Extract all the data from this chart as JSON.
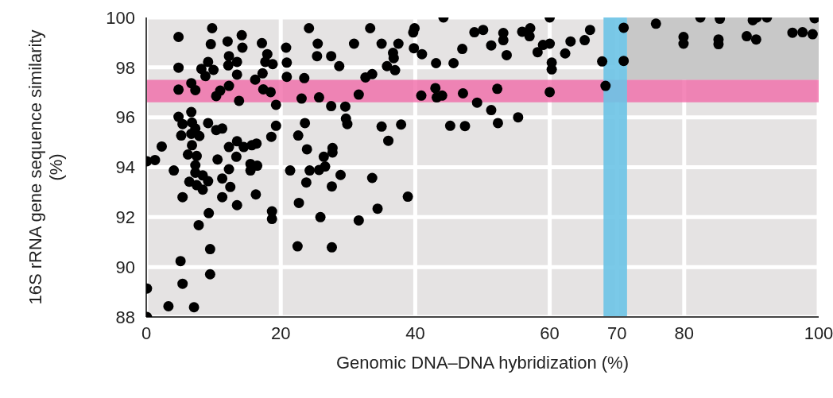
{
  "chart_data": {
    "type": "scatter",
    "xlabel": "Genomic DNA–DNA hybridization (%)",
    "ylabel": "16S rRNA gene sequence similarity (%)",
    "xlim": [
      0,
      100
    ],
    "ylim": [
      88,
      100
    ],
    "xticks": [
      0,
      20,
      40,
      60,
      70,
      80,
      100
    ],
    "yticks": [
      88,
      90,
      92,
      94,
      96,
      98,
      100
    ],
    "grid": true,
    "marker": "circle",
    "legend": false,
    "bands": [
      {
        "axis": "y",
        "from": 97.5,
        "to": 100,
        "color": "#c8c8c8"
      },
      {
        "axis": "y",
        "from": 96.6,
        "to": 97.5,
        "color": "#f06aa8"
      },
      {
        "axis": "x",
        "from": 68,
        "to": 71.5,
        "color": "#6cc3e6"
      }
    ],
    "series": [
      {
        "color": "#000000",
        "x": [
          9.8,
          4.8,
          14.2,
          9.6,
          12.1,
          14.3,
          17.2,
          20.8,
          18.0,
          4.8,
          8.2,
          9.2,
          10.0,
          8.8,
          12.3,
          13.5,
          12.2,
          13.5,
          17.7,
          18.8,
          20.9,
          20.9,
          17.3,
          16.2,
          4.8,
          6.7,
          7.3,
          10.4,
          11.0,
          12.3,
          13.8,
          17.4,
          18.5,
          19.3,
          4.8,
          5.4,
          6.7,
          6.8,
          7.3,
          9.2,
          10.4,
          11.3,
          19.3,
          5.2,
          6.7,
          7.9,
          2.3,
          6.8,
          12.3,
          13.5,
          14.5,
          15.7,
          16.4,
          18.6,
          6.2,
          7.5,
          10.6,
          13.4,
          0.1,
          1.3,
          7.3,
          4.1,
          7.3,
          8.4,
          9.2,
          6.4,
          7.5,
          8.4,
          11.3,
          12.3,
          12.5,
          11.3,
          5.4,
          13.5,
          15.5,
          16.5,
          15.5,
          16.3,
          21.4,
          18.7,
          18.7,
          9.3,
          7.8,
          9.5,
          5.1,
          9.5,
          5.4,
          0.1,
          3.3,
          7.1,
          0.1,
          24.2,
          33.3,
          39.9,
          39.7,
          44.2,
          25.5,
          30.9,
          35.0,
          37.5,
          25.4,
          27.5,
          28.7,
          36.7,
          36.8,
          35.8,
          37.0,
          39.8,
          41.0,
          43.1,
          45.7,
          23.5,
          32.6,
          33.6,
          23.1,
          25.7,
          27.5,
          29.6,
          31.6,
          40.9,
          43.0,
          43.2,
          44.0,
          29.7,
          29.9,
          23.6,
          22.6,
          35.0,
          37.9,
          36.0,
          45.2,
          23.9,
          27.7,
          27.7,
          26.4,
          24.3,
          25.7,
          26.6,
          28.9,
          23.8,
          27.6,
          33.6,
          38.9,
          22.7,
          25.9,
          31.6,
          34.4,
          22.5,
          27.6,
          60.0,
          48.8,
          50.1,
          53.1,
          53.1,
          55.9,
          57.1,
          57.0,
          66.0,
          71.0,
          75.8,
          47.0,
          51.3,
          53.6,
          58.2,
          59.0,
          60.0,
          63.1,
          65.2,
          62.3,
          60.3,
          60.3,
          67.8,
          71.0,
          68.3,
          47.1,
          52.2,
          60.0,
          49.2,
          51.3,
          55.3,
          52.3,
          47.4,
          82.4,
          85.3,
          90.2,
          90.8,
          92.3,
          99.4,
          79.9,
          79.9,
          85.1,
          85.1,
          89.3,
          90.7,
          96.1,
          97.6,
          99.1
        ],
        "values": [
          99.57,
          99.22,
          99.29,
          98.93,
          99.04,
          98.79,
          98.97,
          98.79,
          98.53,
          97.99,
          97.94,
          98.22,
          97.9,
          97.65,
          98.45,
          98.22,
          98.08,
          97.71,
          98.22,
          98.13,
          98.19,
          97.62,
          97.76,
          97.51,
          97.11,
          97.37,
          97.09,
          96.85,
          97.07,
          97.26,
          96.66,
          97.12,
          97.01,
          96.5,
          96.02,
          95.73,
          96.21,
          95.79,
          95.55,
          95.77,
          95.49,
          95.55,
          95.66,
          95.27,
          95.34,
          95.25,
          94.83,
          94.88,
          94.81,
          95.04,
          94.81,
          94.88,
          94.95,
          95.22,
          94.51,
          94.45,
          94.31,
          94.42,
          94.24,
          94.29,
          94.08,
          93.87,
          93.78,
          93.67,
          93.44,
          93.42,
          93.28,
          93.1,
          93.55,
          93.92,
          93.21,
          92.8,
          92.8,
          92.48,
          94.13,
          94.06,
          93.87,
          92.91,
          93.87,
          92.23,
          91.93,
          92.16,
          91.68,
          90.72,
          90.24,
          89.71,
          89.33,
          89.14,
          88.43,
          88.39,
          88.0,
          99.57,
          99.57,
          99.57,
          99.4,
          100.0,
          98.95,
          98.95,
          98.95,
          98.95,
          98.45,
          98.45,
          98.05,
          98.58,
          98.37,
          98.05,
          97.89,
          98.77,
          98.53,
          98.17,
          98.17,
          97.57,
          97.6,
          97.73,
          96.75,
          96.8,
          96.45,
          96.43,
          96.91,
          96.87,
          97.17,
          96.8,
          96.87,
          95.95,
          95.73,
          95.77,
          95.27,
          95.63,
          95.71,
          95.06,
          95.66,
          94.72,
          94.77,
          94.59,
          94.42,
          93.87,
          93.89,
          94.03,
          93.69,
          93.39,
          93.23,
          93.57,
          92.82,
          92.57,
          92.0,
          91.87,
          92.34,
          90.83,
          90.79,
          100.0,
          99.41,
          99.5,
          99.38,
          99.09,
          99.43,
          99.57,
          99.25,
          99.5,
          99.59,
          99.75,
          98.74,
          98.88,
          98.49,
          98.61,
          98.9,
          98.95,
          99.04,
          99.09,
          98.56,
          98.19,
          97.92,
          98.24,
          98.26,
          97.26,
          96.96,
          97.14,
          97.01,
          96.59,
          96.29,
          96.0,
          95.77,
          95.65,
          100.0,
          99.95,
          99.89,
          100.0,
          100.0,
          99.97,
          99.22,
          98.95,
          99.12,
          98.93,
          99.25,
          99.12,
          99.39,
          99.41,
          99.33
        ]
      }
    ]
  }
}
